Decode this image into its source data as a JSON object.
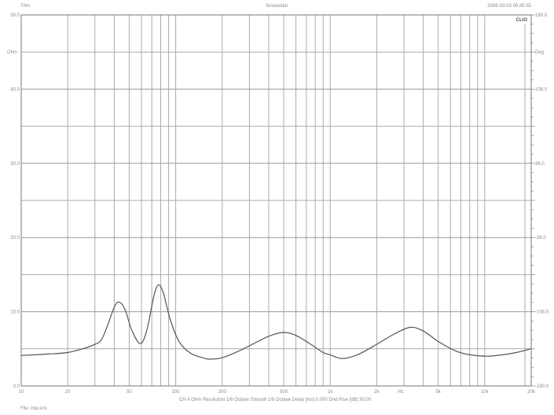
{
  "header": {
    "left": "Thm",
    "center": "Sinusoidal",
    "right": "2006-03-03 00:45:55",
    "logo": "CLIO"
  },
  "footer": {
    "settings": "CH A   Ohm   Resolution 1/6 Octave   Smooth 1/6 Octave   Delay [ms] 0.000   Dnd Rise [dB] 30.00",
    "file": "File: imp.sns"
  },
  "chart_data": {
    "type": "line",
    "title": "Sinusoidal",
    "xscale": "log",
    "xlim": [
      10,
      20000
    ],
    "ylim": [
      0,
      50
    ],
    "y2lim": [
      -180,
      180
    ],
    "grid": true,
    "xlabel": "Hz",
    "ylabel": "Ohm",
    "y2label": "Deg",
    "x_ticks": [
      {
        "value": 10,
        "label": "10"
      },
      {
        "value": 20,
        "label": "20"
      },
      {
        "value": 50,
        "label": "50"
      },
      {
        "value": 100,
        "label": "100"
      },
      {
        "value": 200,
        "label": "200"
      },
      {
        "value": 500,
        "label": "500"
      },
      {
        "value": 1000,
        "label": "1k"
      },
      {
        "value": 2000,
        "label": "2k"
      },
      {
        "value": 5000,
        "label": "5k"
      },
      {
        "value": 10000,
        "label": "10k"
      },
      {
        "value": 20000,
        "label": "20k"
      }
    ],
    "y_ticks": [
      {
        "value": 50,
        "label": "50.0"
      },
      {
        "value": 40,
        "label": "40.0"
      },
      {
        "value": 30,
        "label": "30.0"
      },
      {
        "value": 20,
        "label": "20.0"
      },
      {
        "value": 10,
        "label": "10.0"
      },
      {
        "value": 0,
        "label": "0.0"
      }
    ],
    "y2_ticks": [
      {
        "value": 180,
        "label": "180.0"
      },
      {
        "value": 108,
        "label": "108.0"
      },
      {
        "value": 36,
        "label": "36.0"
      },
      {
        "value": -36,
        "label": "-36.0"
      },
      {
        "value": -108,
        "label": "-108.0"
      },
      {
        "value": -180,
        "label": "-180.0"
      }
    ],
    "series": [
      {
        "color": "#555555",
        "x": [
          10,
          15,
          20,
          25,
          30,
          33,
          36,
          40,
          43,
          47,
          52,
          59,
          65,
          72,
          77,
          83,
          92,
          105,
          125,
          150,
          166,
          200,
          250,
          300,
          400,
          500,
          600,
          750,
          900,
          1000,
          1190,
          1500,
          2000,
          2600,
          3300,
          4000,
          5000,
          6500,
          8000,
          10400,
          13000,
          16000,
          20000
        ],
        "y": [
          4.1,
          4.3,
          4.5,
          5.0,
          5.6,
          6.2,
          8.0,
          10.6,
          11.3,
          10.3,
          7.5,
          5.7,
          7.5,
          12.0,
          13.6,
          12.6,
          9.0,
          6.0,
          4.4,
          3.8,
          3.6,
          3.8,
          4.6,
          5.4,
          6.7,
          7.2,
          6.8,
          5.6,
          4.5,
          4.2,
          3.7,
          4.2,
          5.6,
          7.0,
          7.9,
          7.4,
          6.0,
          4.7,
          4.2,
          4.0,
          4.2,
          4.5,
          5.0
        ]
      }
    ]
  }
}
